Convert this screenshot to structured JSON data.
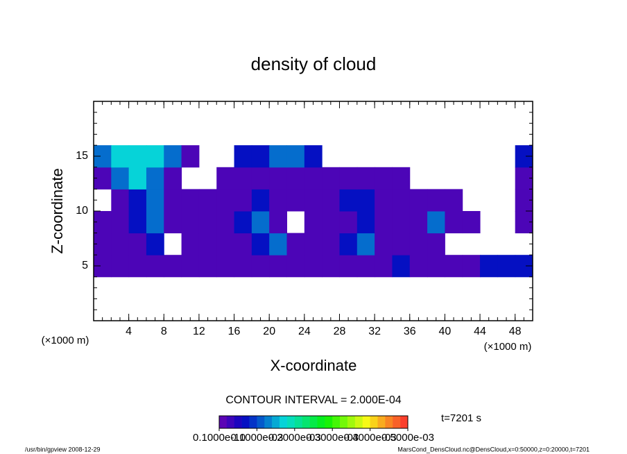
{
  "chart_data": {
    "type": "contour",
    "title": "density of cloud",
    "xlabel": "X-coordinate",
    "ylabel": "Z-coordinate",
    "x_unit": "(×1000 m)",
    "y_unit": "(×1000 m)",
    "contour_interval": "CONTOUR INTERVAL = 2.000E-04",
    "time_label": "t=7201 s",
    "footer_left": "/usr/bin/gpview   2008-12-29",
    "footer_right": "MarsCond_DensCloud.nc@DensCloud,x=0:50000,z=0:20000,t=7201",
    "xlim": [
      0,
      50
    ],
    "ylim": [
      0,
      20
    ],
    "xticks": [
      4,
      8,
      12,
      16,
      20,
      24,
      28,
      32,
      36,
      40,
      44,
      48
    ],
    "yticks": [
      5,
      10,
      15
    ],
    "minor_ticks": true,
    "x": [
      1,
      3,
      5,
      7,
      9,
      11,
      13,
      15,
      17,
      19,
      21,
      23,
      25,
      27,
      29,
      31,
      33,
      35,
      37,
      39,
      41,
      43,
      45,
      47,
      49
    ],
    "y": [
      5,
      7,
      9,
      11,
      13,
      15
    ],
    "z": [
      [
        2e-05,
        2e-05,
        2e-05,
        2e-05,
        2e-05,
        2e-05,
        2e-05,
        2e-05,
        2e-05,
        2e-05,
        2e-05,
        2e-05,
        2e-05,
        2e-05,
        2e-05,
        2e-05,
        2e-05,
        7e-05,
        2e-05,
        2e-05,
        2e-05,
        2e-05,
        7e-05,
        7e-05,
        7e-05
      ],
      [
        2e-05,
        2e-05,
        2e-05,
        7e-05,
        null,
        2e-05,
        2e-05,
        2e-05,
        2e-05,
        7e-05,
        0.00012,
        2e-05,
        2e-05,
        2e-05,
        7e-05,
        0.00012,
        2e-05,
        2e-05,
        2e-05,
        2e-05,
        null,
        null,
        null,
        null,
        null
      ],
      [
        2e-05,
        2e-05,
        7e-05,
        0.00012,
        2e-05,
        2e-05,
        2e-05,
        2e-05,
        7e-05,
        0.00012,
        2e-05,
        null,
        2e-05,
        2e-05,
        2e-05,
        7e-05,
        2e-05,
        2e-05,
        2e-05,
        0.00012,
        2e-05,
        2e-05,
        null,
        null,
        2e-05
      ],
      [
        null,
        2e-05,
        7e-05,
        0.00012,
        2e-05,
        2e-05,
        2e-05,
        2e-05,
        2e-05,
        7e-05,
        2e-05,
        2e-05,
        2e-05,
        2e-05,
        7e-05,
        7e-05,
        2e-05,
        2e-05,
        2e-05,
        2e-05,
        2e-05,
        null,
        null,
        null,
        2e-05
      ],
      [
        2e-05,
        0.00012,
        0.00017,
        0.00012,
        2e-05,
        null,
        null,
        2e-05,
        2e-05,
        2e-05,
        2e-05,
        2e-05,
        2e-05,
        2e-05,
        2e-05,
        2e-05,
        2e-05,
        2e-05,
        null,
        null,
        null,
        null,
        null,
        null,
        2e-05
      ],
      [
        0.00012,
        0.00017,
        0.00017,
        0.00017,
        0.00012,
        2e-05,
        null,
        null,
        7e-05,
        7e-05,
        0.00012,
        0.00012,
        7e-05,
        null,
        null,
        null,
        null,
        null,
        null,
        null,
        null,
        null,
        null,
        null,
        7e-05
      ]
    ],
    "colorbar": {
      "range": [
        0,
        0.0005
      ],
      "levels": 25,
      "ticks": [
        {
          "value": 1e-11,
          "label": "0.1000e-10"
        },
        {
          "value": 0.0001,
          "label": "0.1000e-03"
        },
        {
          "value": 0.0002,
          "label": "0.2000e-03"
        },
        {
          "value": 0.0003,
          "label": "0.3000e-03"
        },
        {
          "value": 0.0004,
          "label": "0.4000e-03"
        },
        {
          "value": 0.0005,
          "label": "0.5000e-03"
        }
      ]
    }
  }
}
